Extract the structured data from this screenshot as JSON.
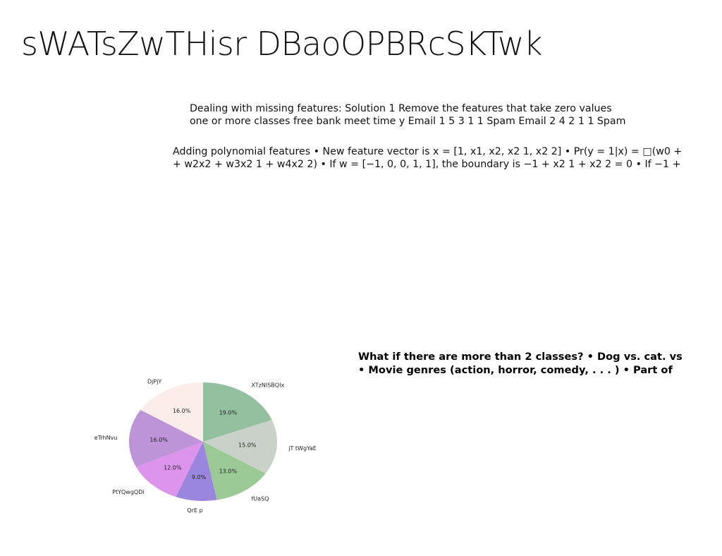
{
  "title": "sWATsZwTHisr DBaoOPBRcSKTwk",
  "text_blocks": {
    "missing_features": {
      "line1": "Dealing with missing features: Solution 1 Remove the features that take zero values",
      "line2": "one or more classes free bank meet time y Email 1 5 3 1 1 Spam Email 2 4 2 1 1 Spam"
    },
    "polynomial_features": {
      "line1": "Adding polynomial features • New feature vector is x = [1, x1, x2, x2 1, x2 2] • Pr(y = 1|x) = □(w0 +",
      "line2": "+ w2x2 + w3x2 1 + w4x2 2) • If w = [−1, 0, 0, 1, 1], the boundary is −1 + x2 1 + x2 2 = 0 • If −1 +"
    },
    "more_classes": {
      "line1": "What if there are more than 2 classes? • Dog vs. cat. vs",
      "line2": "• Movie genres (action, horror, comedy, . . . ) • Part of"
    }
  },
  "chart_data": {
    "type": "pie",
    "start_angle_deg": 90,
    "direction": "clockwise",
    "slices": [
      {
        "label": "XTzNISBQIx",
        "value": 19.0,
        "pct_label": "19.0%",
        "color": "#93c09f"
      },
      {
        "label": "jT tWgYaE",
        "value": 15.0,
        "pct_label": "15.0%",
        "color": "#c9d1c9"
      },
      {
        "label": "fUaSQ",
        "value": 13.0,
        "pct_label": "13.0%",
        "color": "#9bc995"
      },
      {
        "label": "QrE p",
        "value": 9.0,
        "pct_label": "9.0%",
        "color": "#9b86de"
      },
      {
        "label": "PtYQwgQDi",
        "value": 12.0,
        "pct_label": "12.0%",
        "color": "#dc94ec"
      },
      {
        "label": "eTrhNvu",
        "value": 16.0,
        "pct_label": "16.0%",
        "color": "#bd94d8"
      },
      {
        "label": "DjPjY",
        "value": 16.0,
        "pct_label": "16.0%",
        "color": "#fbede9"
      }
    ]
  }
}
